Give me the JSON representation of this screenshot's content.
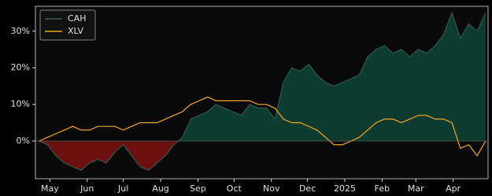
{
  "chart_data": {
    "type": "area-line",
    "x": [
      "2024-04-22",
      "2024-04-29",
      "2024-05-06",
      "2024-05-13",
      "2024-05-20",
      "2024-05-27",
      "2024-06-03",
      "2024-06-10",
      "2024-06-17",
      "2024-06-24",
      "2024-07-01",
      "2024-07-08",
      "2024-07-15",
      "2024-07-22",
      "2024-07-29",
      "2024-08-05",
      "2024-08-12",
      "2024-08-19",
      "2024-08-26",
      "2024-09-02",
      "2024-09-09",
      "2024-09-16",
      "2024-09-23",
      "2024-09-30",
      "2024-10-07",
      "2024-10-14",
      "2024-10-21",
      "2024-10-28",
      "2024-11-04",
      "2024-11-11",
      "2024-11-18",
      "2024-11-25",
      "2024-12-02",
      "2024-12-09",
      "2024-12-16",
      "2024-12-23",
      "2024-12-30",
      "2025-01-06",
      "2025-01-13",
      "2025-01-20",
      "2025-01-27",
      "2025-02-03",
      "2025-02-10",
      "2025-02-17",
      "2025-02-24",
      "2025-03-03",
      "2025-03-10",
      "2025-03-17",
      "2025-03-24",
      "2025-03-31",
      "2025-04-07",
      "2025-04-14",
      "2025-04-21",
      "2025-04-28"
    ],
    "series": [
      {
        "name": "CAH",
        "color": "#2f5a4d",
        "fill_positive": "#0d3b2f",
        "fill_negative": "#6a1010",
        "values": [
          0,
          -1,
          -4,
          -6,
          -7,
          -8,
          -6,
          -5,
          -6,
          -3,
          -1,
          -4,
          -7,
          -8,
          -6,
          -4,
          -1,
          1,
          6,
          7,
          8,
          10,
          9,
          8,
          7,
          10,
          9,
          9,
          6,
          16,
          20,
          19,
          21,
          18,
          16,
          15,
          16,
          17,
          18,
          23,
          25,
          26,
          24,
          25,
          23,
          25,
          24,
          26,
          29,
          35,
          28,
          32,
          30,
          35
        ]
      },
      {
        "name": "XLV",
        "color": "#f5a623",
        "values": [
          0,
          1,
          2,
          3,
          4,
          3,
          3,
          4,
          4,
          4,
          3,
          4,
          5,
          5,
          5,
          6,
          7,
          8,
          10,
          11,
          12,
          11,
          11,
          11,
          11,
          11,
          10,
          10,
          9,
          6,
          5,
          5,
          4,
          3,
          1,
          -1,
          -1,
          0,
          1,
          3,
          5,
          6,
          6,
          5,
          6,
          7,
          7,
          6,
          6,
          5,
          -2,
          -1,
          -4,
          0
        ]
      }
    ],
    "xlim": [
      "2024-04-19",
      "2025-04-30"
    ],
    "xticks": [
      {
        "value": "2024-05-01",
        "label": "May"
      },
      {
        "value": "2024-06-01",
        "label": "Jun"
      },
      {
        "value": "2024-07-01",
        "label": "Jul"
      },
      {
        "value": "2024-08-01",
        "label": "Aug"
      },
      {
        "value": "2024-09-01",
        "label": "Sep"
      },
      {
        "value": "2024-10-01",
        "label": "Oct"
      },
      {
        "value": "2024-11-01",
        "label": "Nov"
      },
      {
        "value": "2024-12-01",
        "label": "Dec"
      },
      {
        "value": "2025-01-01",
        "label": "2025"
      },
      {
        "value": "2025-02-01",
        "label": "Feb"
      },
      {
        "value": "2025-03-01",
        "label": "Mar"
      },
      {
        "value": "2025-04-01",
        "label": "Apr"
      }
    ],
    "ylim": [
      -10.3,
      36.8
    ],
    "yticks": [
      {
        "value": 0,
        "label": "0%"
      },
      {
        "value": 10,
        "label": "10%"
      },
      {
        "value": 20,
        "label": "20%"
      },
      {
        "value": 30,
        "label": "30%"
      }
    ],
    "legend": "upper left"
  }
}
